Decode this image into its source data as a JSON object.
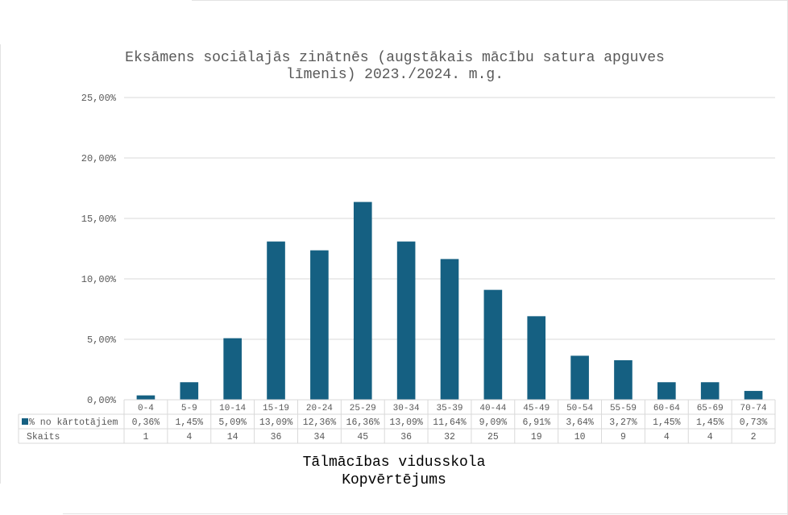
{
  "chart_data": {
    "type": "bar",
    "title": "Eksāmens sociālajās zinātnēs (augstākais mācību satura apguves līmenis) 2023./2024. m.g.",
    "categories": [
      "0-4",
      "5-9",
      "10-14",
      "15-19",
      "20-24",
      "25-29",
      "30-34",
      "35-39",
      "40-44",
      "45-49",
      "50-54",
      "55-59",
      "60-64",
      "65-69",
      "70-74"
    ],
    "series": [
      {
        "name": "% no kārtotājiem",
        "values": [
          0.36,
          1.45,
          5.09,
          13.09,
          12.36,
          16.36,
          13.09,
          11.64,
          9.09,
          6.91,
          3.64,
          3.27,
          1.45,
          1.45,
          0.73
        ],
        "labels": [
          "0,36%",
          "1,45%",
          "5,09%",
          "13,09%",
          "12,36%",
          "16,36%",
          "13,09%",
          "11,64%",
          "9,09%",
          "6,91%",
          "3,64%",
          "3,27%",
          "1,45%",
          "1,45%",
          "0,73%"
        ],
        "color": "#156082"
      }
    ],
    "table_rows": [
      {
        "name": "Skaits",
        "values": [
          "1",
          "4",
          "14",
          "36",
          "34",
          "45",
          "36",
          "32",
          "25",
          "19",
          "10",
          "9",
          "4",
          "4",
          "2"
        ]
      }
    ],
    "y_ticks": [
      "0,00%",
      "5,00%",
      "10,00%",
      "15,00%",
      "20,00%",
      "25,00%"
    ],
    "ylim": [
      0,
      25
    ],
    "grid": true,
    "legend": "data-table"
  },
  "footer": {
    "line1": "Tālmācības vidusskola",
    "line2": "Kopvērtējums"
  }
}
